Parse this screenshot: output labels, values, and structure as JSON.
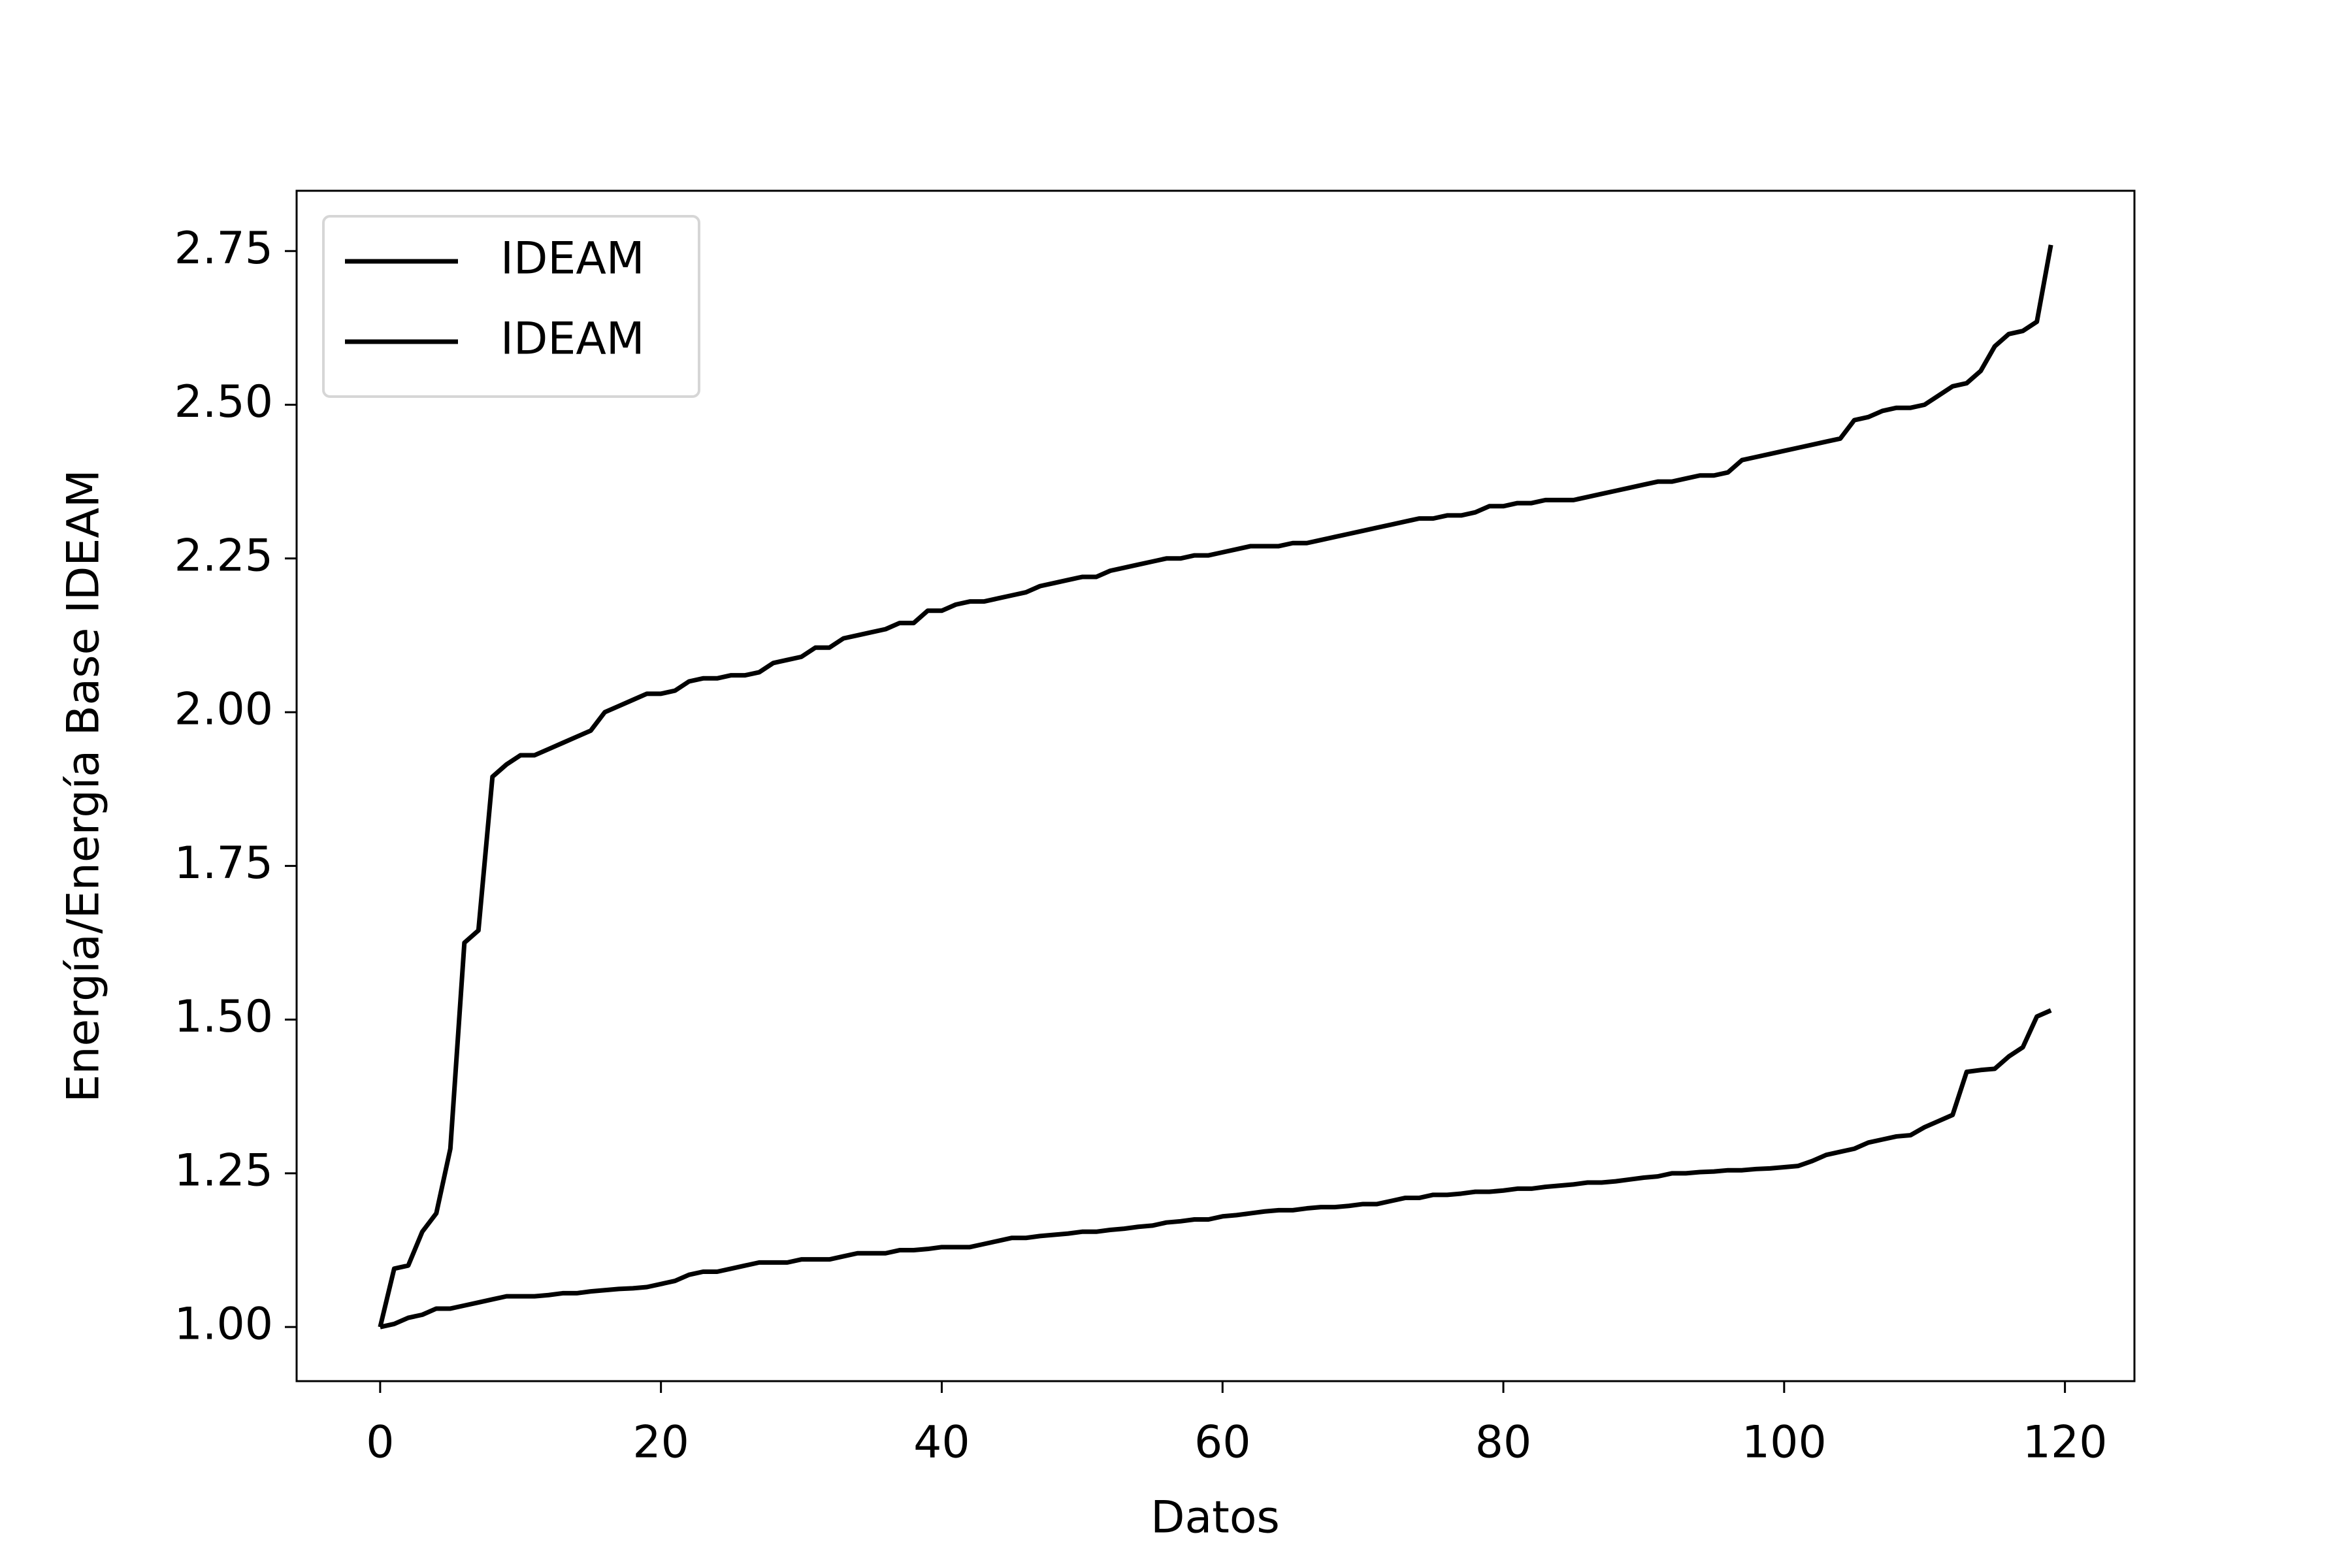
{
  "chart_data": {
    "type": "line",
    "xlabel": "Datos",
    "ylabel": "Energía/Energía Base IDEAM",
    "x": [
      0,
      1,
      2,
      3,
      4,
      5,
      6,
      7,
      8,
      9,
      10,
      11,
      12,
      13,
      14,
      15,
      16,
      17,
      18,
      19,
      20,
      21,
      22,
      23,
      24,
      25,
      26,
      27,
      28,
      29,
      30,
      31,
      32,
      33,
      34,
      35,
      36,
      37,
      38,
      39,
      40,
      41,
      42,
      43,
      44,
      45,
      46,
      47,
      48,
      49,
      50,
      51,
      52,
      53,
      54,
      55,
      56,
      57,
      58,
      59,
      60,
      61,
      62,
      63,
      64,
      65,
      66,
      67,
      68,
      69,
      70,
      71,
      72,
      73,
      74,
      75,
      76,
      77,
      78,
      79,
      80,
      81,
      82,
      83,
      84,
      85,
      86,
      87,
      88,
      89,
      90,
      91,
      92,
      93,
      94,
      95,
      96,
      97,
      98,
      99,
      100,
      101,
      102,
      103,
      104,
      105,
      106,
      107,
      108,
      109,
      110,
      111,
      112,
      113,
      114,
      115,
      116,
      117,
      118,
      119
    ],
    "series": [
      {
        "name": "IDEAM",
        "color": "#000000",
        "values": [
          1.0,
          1.095,
          1.1,
          1.155,
          1.185,
          1.29,
          1.625,
          1.645,
          1.895,
          1.915,
          1.93,
          1.93,
          1.94,
          1.95,
          1.96,
          1.97,
          2.0,
          2.01,
          2.02,
          2.03,
          2.03,
          2.035,
          2.05,
          2.055,
          2.055,
          2.06,
          2.06,
          2.065,
          2.08,
          2.085,
          2.09,
          2.105,
          2.105,
          2.12,
          2.125,
          2.13,
          2.135,
          2.145,
          2.145,
          2.165,
          2.165,
          2.175,
          2.18,
          2.18,
          2.185,
          2.19,
          2.195,
          2.205,
          2.21,
          2.215,
          2.22,
          2.22,
          2.23,
          2.235,
          2.24,
          2.245,
          2.25,
          2.25,
          2.255,
          2.255,
          2.26,
          2.265,
          2.27,
          2.27,
          2.27,
          2.275,
          2.275,
          2.28,
          2.285,
          2.29,
          2.295,
          2.3,
          2.305,
          2.31,
          2.315,
          2.315,
          2.32,
          2.32,
          2.325,
          2.335,
          2.335,
          2.34,
          2.34,
          2.345,
          2.345,
          2.345,
          2.35,
          2.355,
          2.36,
          2.365,
          2.37,
          2.375,
          2.375,
          2.38,
          2.385,
          2.385,
          2.39,
          2.41,
          2.415,
          2.42,
          2.425,
          2.43,
          2.435,
          2.44,
          2.445,
          2.475,
          2.48,
          2.49,
          2.495,
          2.495,
          2.5,
          2.515,
          2.53,
          2.535,
          2.555,
          2.595,
          2.615,
          2.62,
          2.635,
          2.76
        ]
      },
      {
        "name": "IDEAM",
        "color": "#000000",
        "values": [
          1.0,
          1.005,
          1.015,
          1.02,
          1.03,
          1.03,
          1.035,
          1.04,
          1.045,
          1.05,
          1.05,
          1.05,
          1.052,
          1.055,
          1.055,
          1.058,
          1.06,
          1.062,
          1.063,
          1.065,
          1.07,
          1.075,
          1.085,
          1.09,
          1.09,
          1.095,
          1.1,
          1.105,
          1.105,
          1.105,
          1.11,
          1.11,
          1.11,
          1.115,
          1.12,
          1.12,
          1.12,
          1.125,
          1.125,
          1.127,
          1.13,
          1.13,
          1.13,
          1.135,
          1.14,
          1.145,
          1.145,
          1.148,
          1.15,
          1.152,
          1.155,
          1.155,
          1.158,
          1.16,
          1.163,
          1.165,
          1.17,
          1.172,
          1.175,
          1.175,
          1.18,
          1.182,
          1.185,
          1.188,
          1.19,
          1.19,
          1.193,
          1.195,
          1.195,
          1.197,
          1.2,
          1.2,
          1.205,
          1.21,
          1.21,
          1.215,
          1.215,
          1.217,
          1.22,
          1.22,
          1.222,
          1.225,
          1.225,
          1.228,
          1.23,
          1.232,
          1.235,
          1.235,
          1.237,
          1.24,
          1.243,
          1.245,
          1.25,
          1.25,
          1.252,
          1.253,
          1.255,
          1.255,
          1.257,
          1.258,
          1.26,
          1.262,
          1.27,
          1.28,
          1.285,
          1.29,
          1.3,
          1.305,
          1.31,
          1.312,
          1.325,
          1.335,
          1.345,
          1.415,
          1.418,
          1.42,
          1.44,
          1.455,
          1.505,
          1.515
        ]
      }
    ],
    "xlim": [
      -5.95,
      124.95
    ],
    "xticks": [
      0,
      20,
      40,
      60,
      80,
      100,
      120
    ],
    "ylim": [
      0.912,
      2.848
    ],
    "yticks": [
      {
        "value": 1.0,
        "label": "1.00"
      },
      {
        "value": 1.25,
        "label": "1.25"
      },
      {
        "value": 1.5,
        "label": "1.50"
      },
      {
        "value": 1.75,
        "label": "1.75"
      },
      {
        "value": 2.0,
        "label": "2.00"
      },
      {
        "value": 2.25,
        "label": "2.25"
      },
      {
        "value": 2.5,
        "label": "2.50"
      },
      {
        "value": 2.75,
        "label": "2.75"
      }
    ],
    "grid": false,
    "legend": "upper left"
  }
}
